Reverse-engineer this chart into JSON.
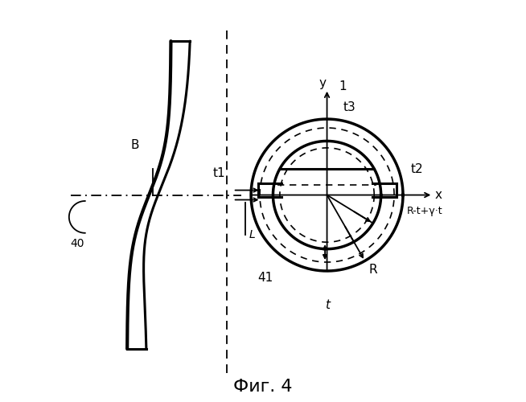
{
  "bg_color": "#ffffff",
  "line_color": "#000000",
  "labels": {
    "t1": "t1",
    "t2": "t2",
    "t3": "t3",
    "t": "t",
    "R": "R",
    "R_expr": "R-t+γ·t",
    "40": "40",
    "41": "41",
    "L": "L",
    "x": "x",
    "y": "y",
    "B": "B",
    "1": "1",
    "fig": "Фиг. 4"
  }
}
